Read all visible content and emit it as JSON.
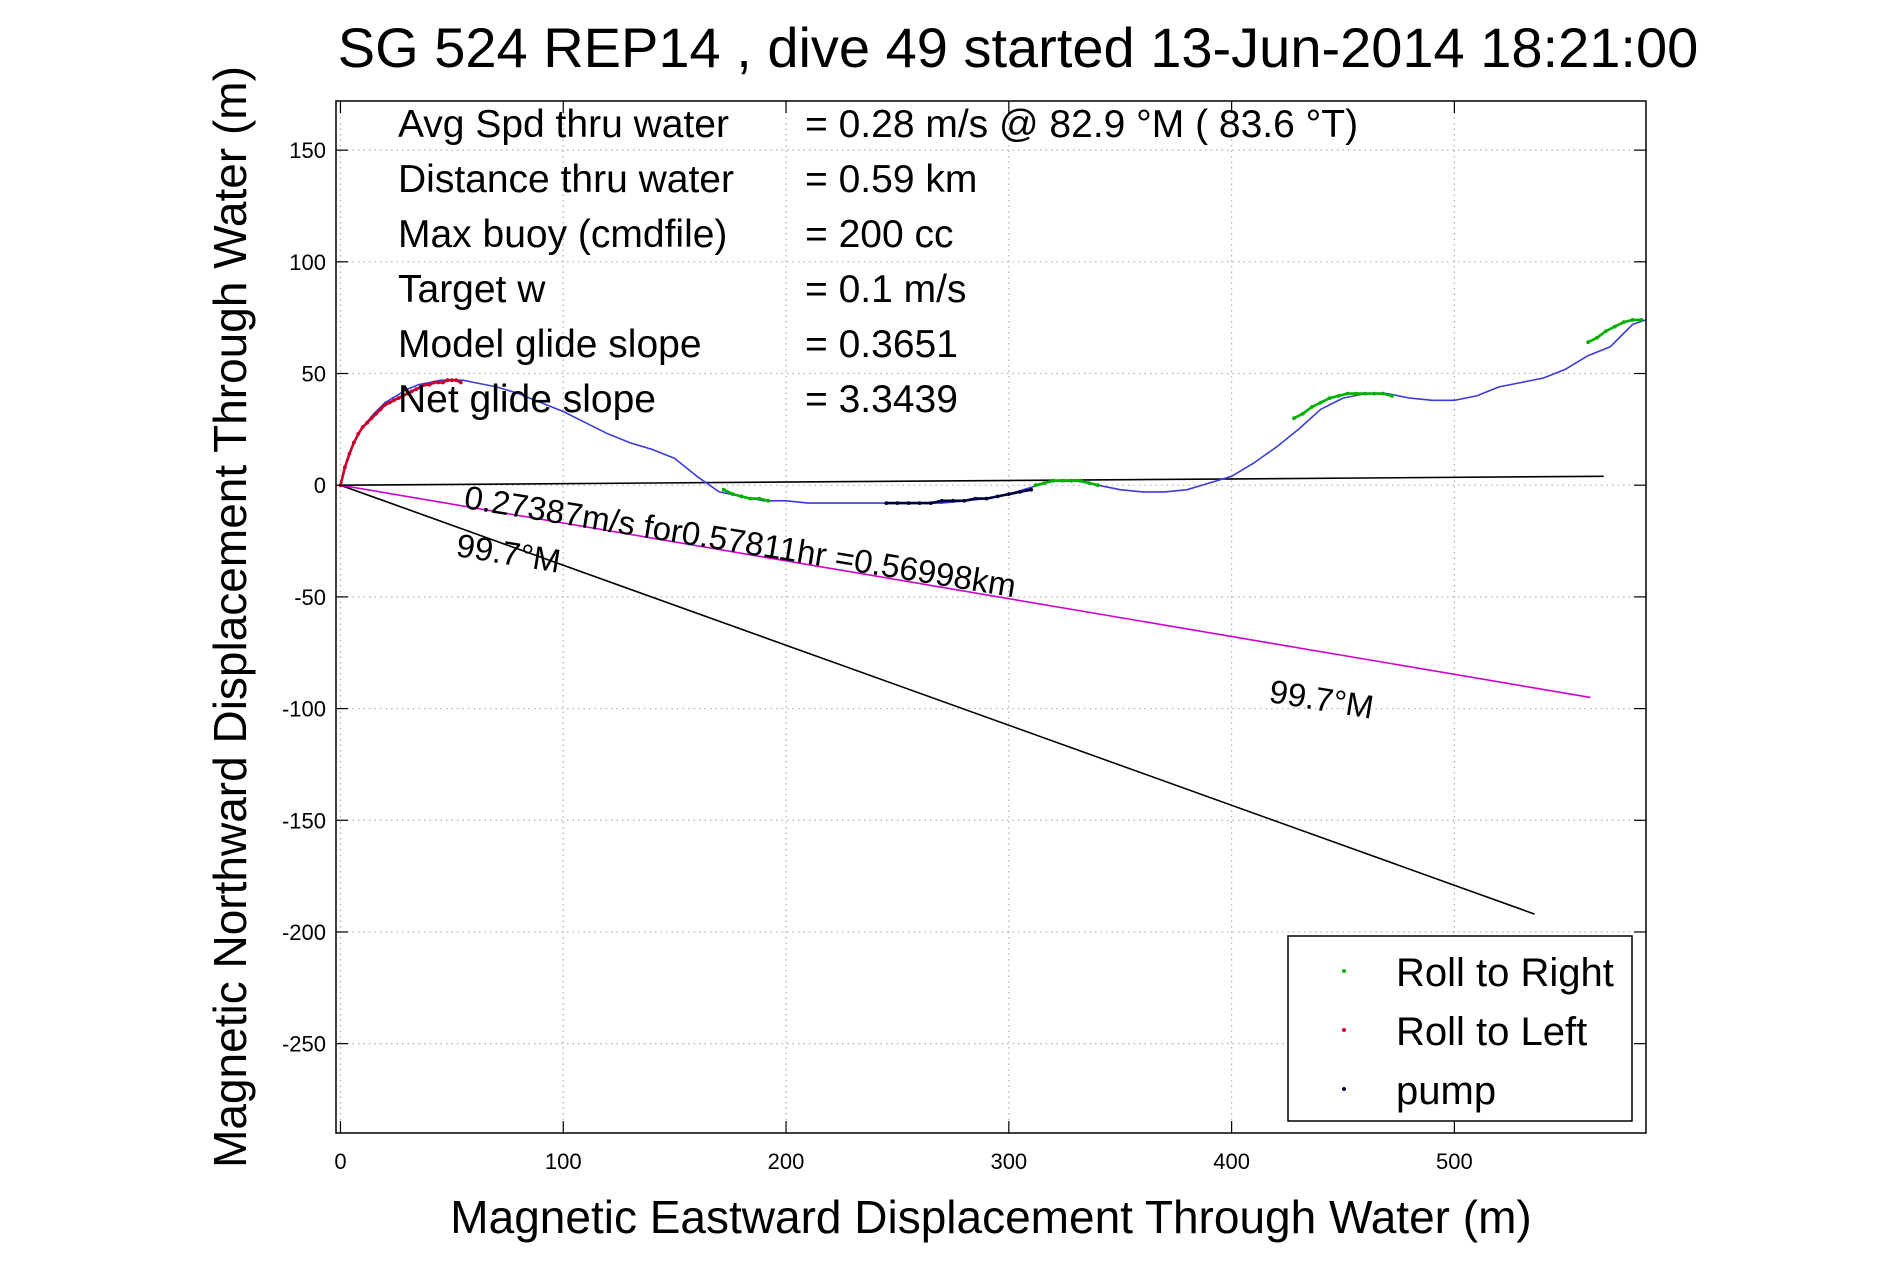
{
  "chart_data": {
    "type": "line",
    "title": "SG 524   REP14  , dive 49 started 13-Jun-2014 18:21:00",
    "xlabel": "Magnetic Eastward Displacement Through Water (m)",
    "ylabel": "Magnetic Northward Displacement Through Water (m)",
    "xlim": [
      -2,
      586
    ],
    "ylim": [
      -290,
      172
    ],
    "xticks": [
      0,
      100,
      200,
      300,
      400,
      500
    ],
    "yticks": [
      150,
      100,
      50,
      0,
      -50,
      -100,
      -150,
      -200,
      -250
    ],
    "grid": true,
    "legend_position": "bottom-right",
    "colors": {
      "track": "#3c3cdc",
      "roll_right": "#00b000",
      "roll_left": "#c8002d",
      "pump": "#00003c",
      "current": "#d000d0",
      "heading": "#000000",
      "zero": "#000000"
    },
    "stats": [
      {
        "label": "Avg Spd thru water",
        "value": "=  0.28 m/s @  82.9 °M ( 83.6 °T)"
      },
      {
        "label": "Distance thru water",
        "value": "=  0.59 km"
      },
      {
        "label": "Max buoy (cmdfile)",
        "value": "= 200 cc"
      },
      {
        "label": "Target w",
        "value": "= 0.1 m/s"
      },
      {
        "label": "Model glide slope",
        "value": "= 0.3651"
      },
      {
        "label": "Net glide slope",
        "value": "= 3.3439"
      }
    ],
    "legend": [
      {
        "name": "Roll to Right",
        "color": "#00b000"
      },
      {
        "name": "Roll to Left",
        "color": "#c8002d"
      },
      {
        "name": "pump",
        "color": "#00003c"
      }
    ],
    "annotations": {
      "current": "0.27387m/s for0.57811hr =0.56998km",
      "current_heading": "99.7°M",
      "heading_label": "99.7°M"
    },
    "series": [
      {
        "id": "track",
        "x": [
          0,
          2,
          5,
          10,
          15,
          20,
          25,
          30,
          35,
          40,
          45,
          50,
          55,
          60,
          70,
          80,
          90,
          100,
          110,
          120,
          130,
          140,
          150,
          160,
          170,
          180,
          190,
          200,
          210,
          220,
          230,
          240,
          250,
          260,
          270,
          280,
          290,
          300,
          310,
          320,
          330,
          340,
          350,
          360,
          370,
          380,
          390,
          400,
          410,
          420,
          430,
          440,
          450,
          460,
          470,
          480,
          490,
          500,
          510,
          520,
          530,
          540,
          550,
          560,
          570,
          575,
          580,
          586
        ],
        "y": [
          0,
          8,
          17,
          26,
          32,
          37,
          40,
          43,
          45,
          46,
          47,
          47,
          47,
          46,
          44,
          41,
          37,
          33,
          28,
          23,
          19,
          16,
          12,
          4,
          -3,
          -5,
          -7,
          -7,
          -8,
          -8,
          -8,
          -8,
          -8,
          -8,
          -8,
          -7,
          -6,
          -4,
          -1,
          2,
          2,
          0,
          -2,
          -3,
          -3,
          -2,
          1,
          4,
          10,
          17,
          25,
          34,
          39,
          41,
          41,
          39,
          38,
          38,
          40,
          44,
          46,
          48,
          52,
          58,
          62,
          67,
          72,
          74
        ]
      },
      {
        "id": "roll_right",
        "segments": [
          {
            "x": [
              172,
              176,
              180,
              184,
              188,
              192
            ],
            "y": [
              -2,
              -4,
              -5,
              -6,
              -6,
              -7
            ]
          },
          {
            "x": [
              312,
              316,
              320,
              324,
              328,
              332,
              336,
              340
            ],
            "y": [
              0,
              1,
              2,
              2,
              2,
              2,
              1,
              0
            ]
          },
          {
            "x": [
              428,
              432,
              436,
              440,
              444,
              448,
              452,
              456,
              460,
              464,
              468,
              472
            ],
            "y": [
              30,
              32,
              35,
              37,
              39,
              40,
              41,
              41,
              41,
              41,
              41,
              40
            ]
          },
          {
            "x": [
              560,
              564,
              568,
              572,
              576,
              580,
              584
            ],
            "y": [
              64,
              66,
              69,
              71,
              73,
              74,
              74
            ]
          }
        ]
      },
      {
        "id": "roll_left",
        "segments": [
          {
            "x": [
              0,
              2,
              4,
              6,
              8,
              10,
              12,
              14,
              16,
              18,
              20,
              22,
              24,
              26,
              28,
              30,
              32,
              34,
              36,
              38,
              40,
              42,
              44,
              46,
              48,
              50,
              52,
              54
            ],
            "y": [
              0,
              8,
              14,
              19,
              23,
              26,
              28,
              30,
              32,
              34,
              36,
              37,
              38,
              39,
              40,
              41,
              42,
              43,
              44,
              45,
              45,
              46,
              46,
              46,
              47,
              47,
              47,
              46
            ]
          }
        ]
      },
      {
        "id": "pump",
        "segments": [
          {
            "x": [
              245,
              250,
              255,
              260,
              265,
              270,
              275,
              280,
              285,
              290,
              295,
              300,
              305,
              310
            ],
            "y": [
              -8,
              -8,
              -8,
              -8,
              -8,
              -7,
              -7,
              -7,
              -6,
              -6,
              -5,
              -4,
              -3,
              -2
            ]
          }
        ]
      },
      {
        "id": "current",
        "x": [
          0,
          561
        ],
        "y": [
          0,
          -95
        ]
      },
      {
        "id": "heading",
        "x": [
          0,
          536
        ],
        "y": [
          0,
          -192
        ]
      },
      {
        "id": "zero",
        "x": [
          0,
          567
        ],
        "y": [
          0,
          4
        ]
      }
    ]
  }
}
